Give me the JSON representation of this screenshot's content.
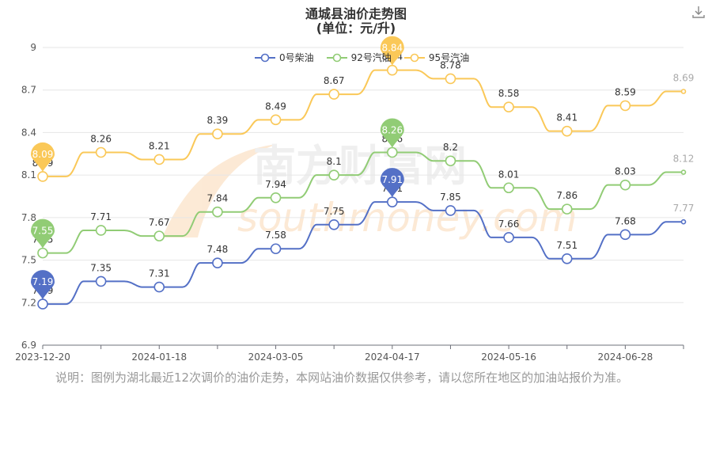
{
  "page": {
    "title": "通城县油价走势图",
    "subtitle": "(单位：元/升)",
    "note": "说明：图例为湖北最近12次调价的油价走势，本网站油价数据仅供参考，请以您所在地区的加油站报价为准。",
    "watermark_cn": "南方财富网",
    "watermark_en": "southmoney.com",
    "download_icon": "download-icon"
  },
  "chart_data": {
    "type": "line",
    "title": "通城县油价走势图",
    "subtitle": "(单位：元/升)",
    "xlabel": "",
    "ylabel": "",
    "ylim": [
      6.9,
      9
    ],
    "yticks": [
      6.9,
      7.2,
      7.5,
      7.8,
      8.1,
      8.4,
      8.7,
      9
    ],
    "x": [
      "2023-12-20",
      "",
      "2024-01-18",
      "",
      "2024-03-05",
      "",
      "2024-04-17",
      "",
      "2024-05-16",
      "",
      "2024-06-28",
      ""
    ],
    "xtick_labels": [
      "2023-12-20",
      "2024-01-18",
      "2024-03-05",
      "2024-04-17",
      "2024-05-16",
      "2024-06-28"
    ],
    "legend_position": "top-center",
    "grid": true,
    "series": [
      {
        "name": "0号柴油",
        "color": "#5470c6",
        "values": [
          7.19,
          7.35,
          7.31,
          7.48,
          7.58,
          7.75,
          7.91,
          7.85,
          7.66,
          7.51,
          7.68,
          7.77
        ],
        "min_marker": "7.19",
        "max_marker": "7.91"
      },
      {
        "name": "92号汽油",
        "color": "#91cc75",
        "values": [
          7.55,
          7.71,
          7.67,
          7.84,
          7.94,
          8.1,
          8.26,
          8.2,
          8.01,
          7.86,
          8.03,
          8.12
        ],
        "min_marker": "7.55",
        "max_marker": "8.26"
      },
      {
        "name": "95号汽油",
        "color": "#fac858",
        "values": [
          8.09,
          8.26,
          8.21,
          8.39,
          8.49,
          8.67,
          8.84,
          8.78,
          8.58,
          8.41,
          8.59,
          8.69
        ],
        "min_marker": "8.09",
        "max_marker": "8.84"
      }
    ]
  }
}
